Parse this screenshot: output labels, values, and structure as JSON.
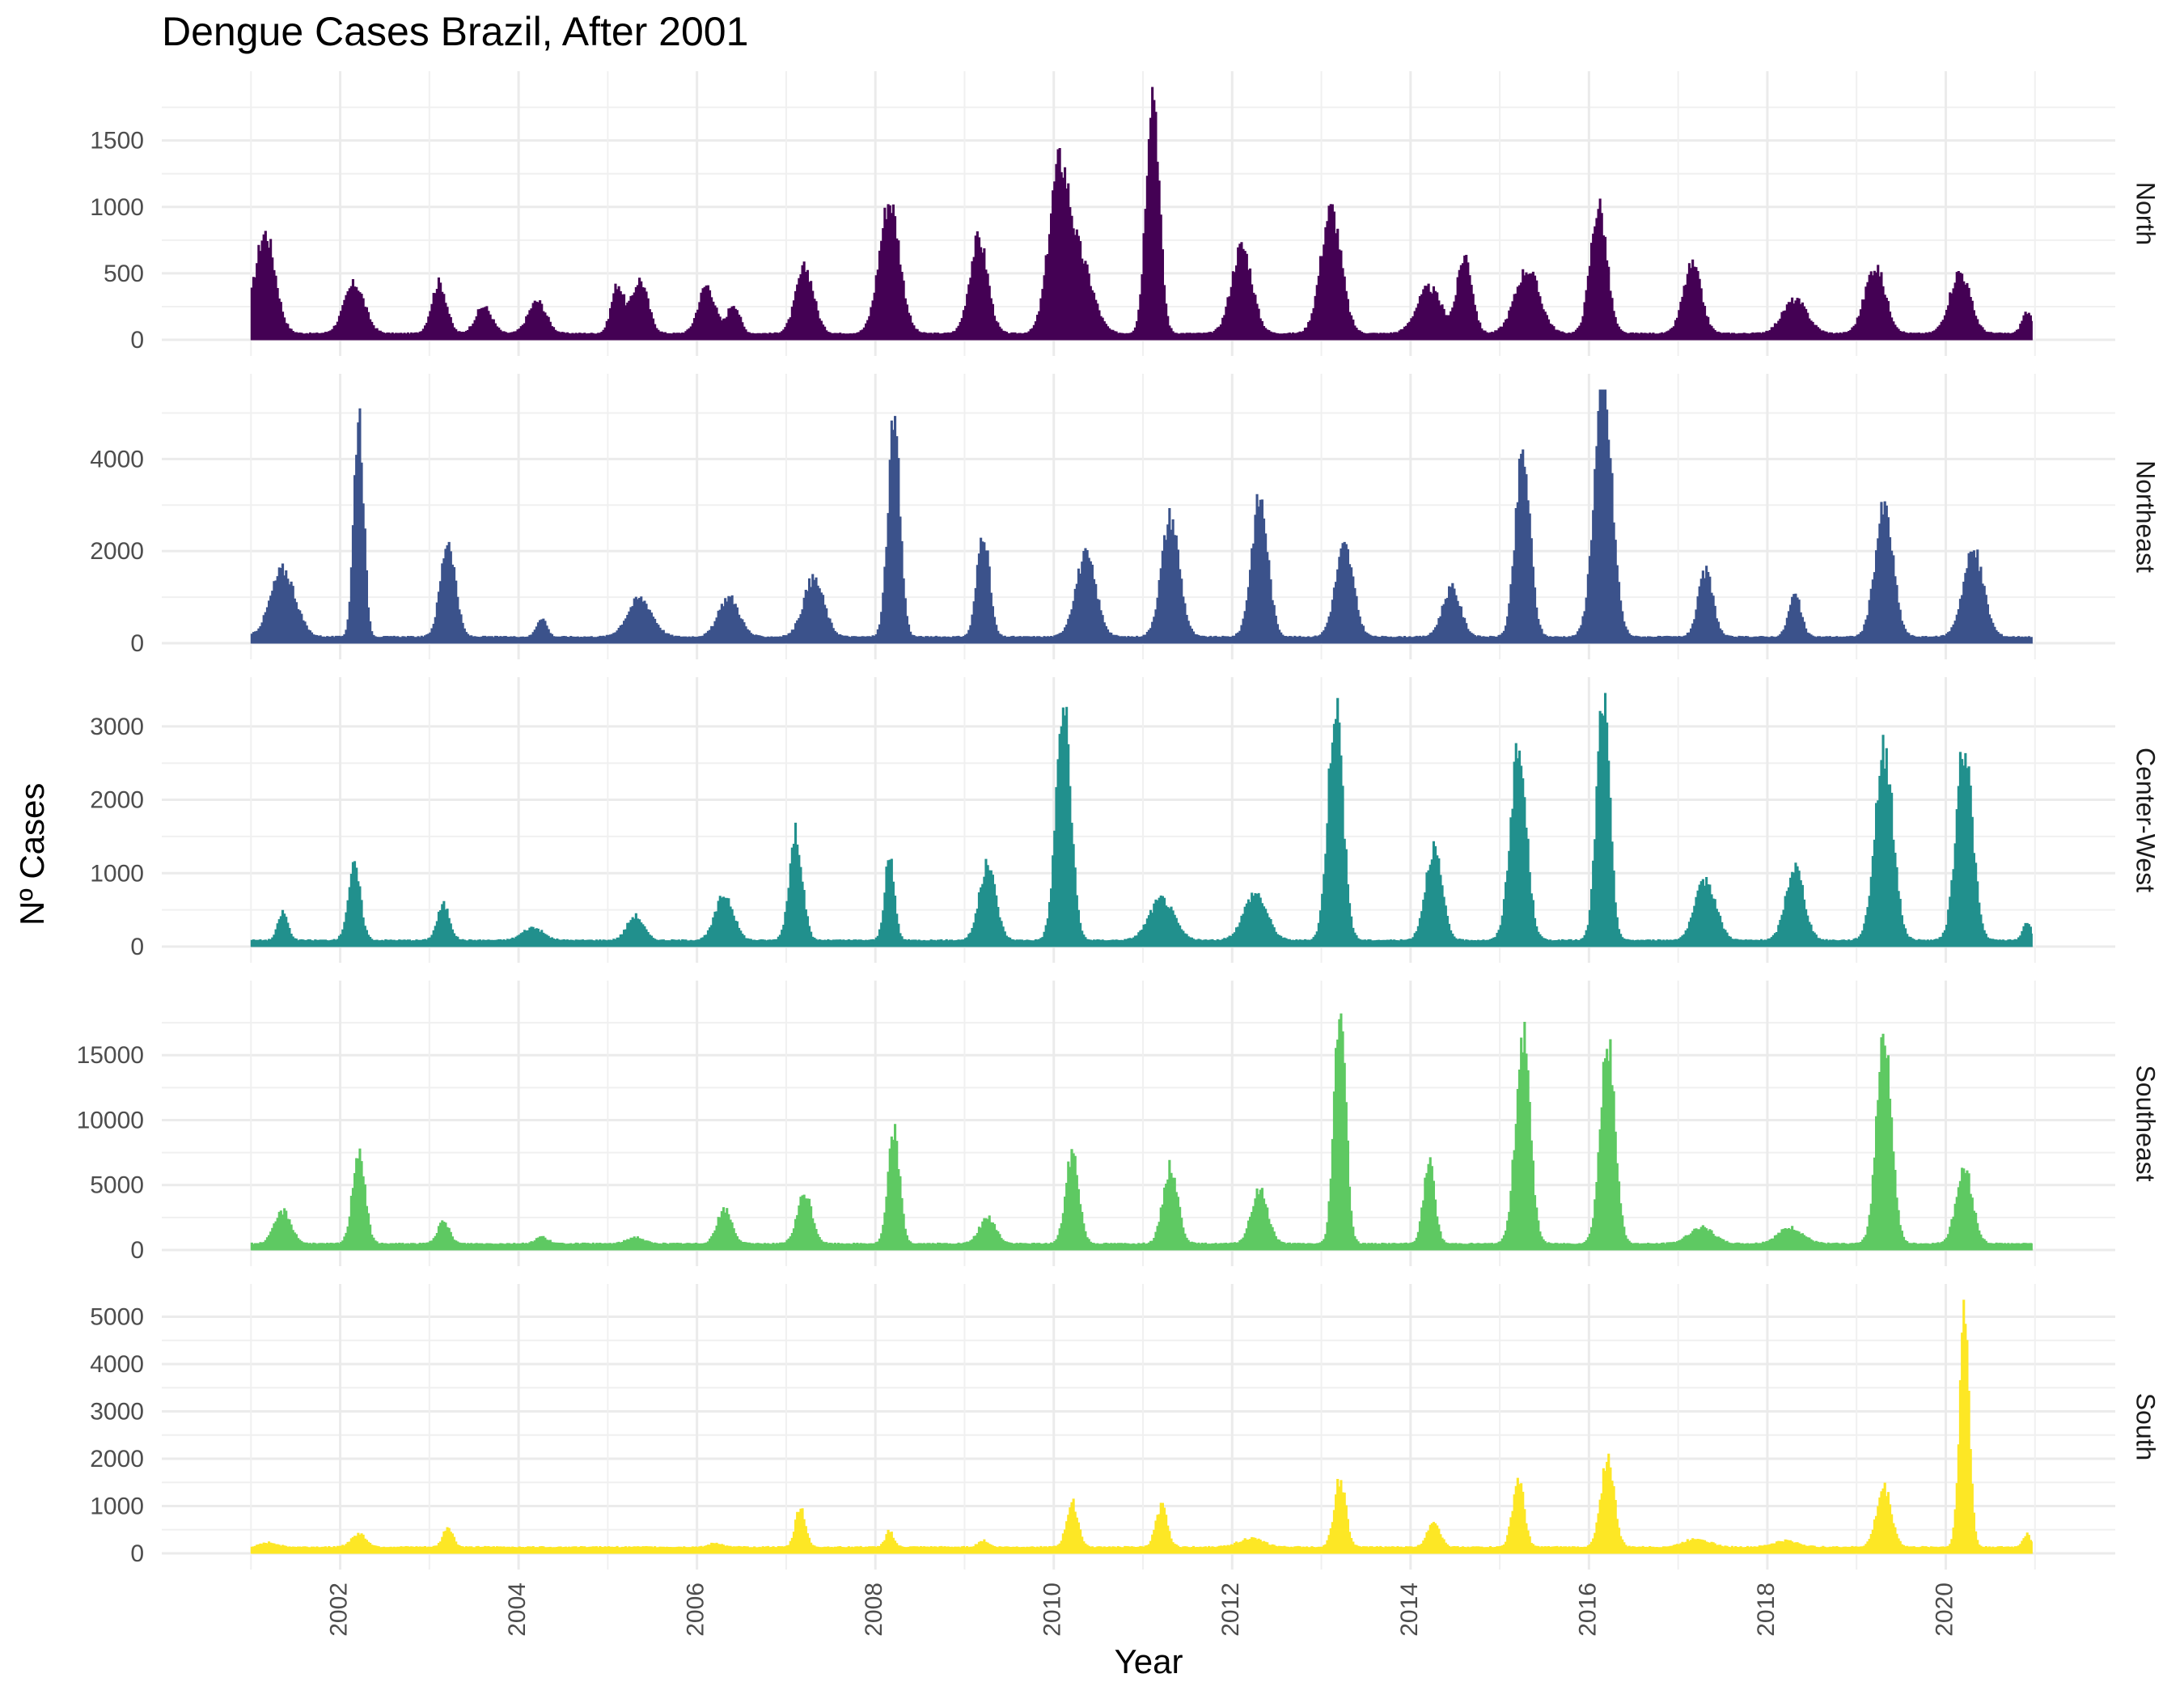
{
  "chart_data": {
    "type": "area",
    "title": "Dengue Cases Brazil, After 2001",
    "xlabel": "Year",
    "ylabel": "Nº Cases",
    "x_ticks": [
      2002,
      2004,
      2006,
      2008,
      2010,
      2012,
      2014,
      2016,
      2018,
      2020
    ],
    "x_range": [
      2000.0,
      2021.9
    ],
    "grid": true,
    "legend": "none",
    "panels": [
      {
        "name": "North",
        "color": "#440154",
        "ylim": [
          0,
          1900
        ],
        "y_ticks": [
          0,
          500,
          1000,
          1500
        ],
        "peaks": [
          {
            "x": 2001.15,
            "y": 750,
            "w": 0.25
          },
          {
            "x": 2002.15,
            "y": 370,
            "w": 0.25
          },
          {
            "x": 2003.1,
            "y": 380,
            "w": 0.18
          },
          {
            "x": 2003.6,
            "y": 200,
            "w": 0.2
          },
          {
            "x": 2004.2,
            "y": 240,
            "w": 0.22
          },
          {
            "x": 2005.1,
            "y": 360,
            "w": 0.15
          },
          {
            "x": 2005.35,
            "y": 400,
            "w": 0.2
          },
          {
            "x": 2006.1,
            "y": 360,
            "w": 0.2
          },
          {
            "x": 2006.4,
            "y": 220,
            "w": 0.15
          },
          {
            "x": 2007.2,
            "y": 490,
            "w": 0.22
          },
          {
            "x": 2008.15,
            "y": 990,
            "w": 0.25
          },
          {
            "x": 2009.15,
            "y": 710,
            "w": 0.22
          },
          {
            "x": 2010.05,
            "y": 1200,
            "w": 0.25
          },
          {
            "x": 2010.3,
            "y": 500,
            "w": 0.3
          },
          {
            "x": 2011.1,
            "y": 1880,
            "w": 0.16
          },
          {
            "x": 2012.1,
            "y": 650,
            "w": 0.25
          },
          {
            "x": 2013.1,
            "y": 930,
            "w": 0.25
          },
          {
            "x": 2014.2,
            "y": 340,
            "w": 0.3
          },
          {
            "x": 2014.6,
            "y": 580,
            "w": 0.18
          },
          {
            "x": 2015.3,
            "y": 480,
            "w": 0.3
          },
          {
            "x": 2016.1,
            "y": 960,
            "w": 0.2
          },
          {
            "x": 2017.15,
            "y": 510,
            "w": 0.22
          },
          {
            "x": 2018.3,
            "y": 250,
            "w": 0.3
          },
          {
            "x": 2019.2,
            "y": 500,
            "w": 0.25
          },
          {
            "x": 2020.15,
            "y": 460,
            "w": 0.25
          },
          {
            "x": 2020.9,
            "y": 160,
            "w": 0.12
          }
        ]
      },
      {
        "name": "Northeast",
        "color": "#3b528b",
        "ylim": [
          0,
          5500
        ],
        "y_ticks": [
          0,
          2000,
          4000
        ],
        "peaks": [
          {
            "x": 2001.35,
            "y": 1450,
            "w": 0.3
          },
          {
            "x": 2002.2,
            "y": 4900,
            "w": 0.12
          },
          {
            "x": 2003.2,
            "y": 2100,
            "w": 0.18
          },
          {
            "x": 2004.25,
            "y": 420,
            "w": 0.12
          },
          {
            "x": 2005.35,
            "y": 830,
            "w": 0.3
          },
          {
            "x": 2006.35,
            "y": 860,
            "w": 0.25
          },
          {
            "x": 2007.3,
            "y": 1250,
            "w": 0.25
          },
          {
            "x": 2008.2,
            "y": 4600,
            "w": 0.15
          },
          {
            "x": 2009.2,
            "y": 2300,
            "w": 0.15
          },
          {
            "x": 2010.35,
            "y": 1750,
            "w": 0.25
          },
          {
            "x": 2011.3,
            "y": 2600,
            "w": 0.22
          },
          {
            "x": 2012.3,
            "y": 3000,
            "w": 0.2
          },
          {
            "x": 2013.25,
            "y": 1950,
            "w": 0.22
          },
          {
            "x": 2014.45,
            "y": 1050,
            "w": 0.22
          },
          {
            "x": 2015.25,
            "y": 3950,
            "w": 0.18
          },
          {
            "x": 2016.15,
            "y": 5400,
            "w": 0.22
          },
          {
            "x": 2017.3,
            "y": 1400,
            "w": 0.18
          },
          {
            "x": 2018.3,
            "y": 900,
            "w": 0.15
          },
          {
            "x": 2019.3,
            "y": 2800,
            "w": 0.22
          },
          {
            "x": 2020.3,
            "y": 1850,
            "w": 0.25
          }
        ]
      },
      {
        "name": "Center-West",
        "color": "#21908d",
        "ylim": [
          0,
          3450
        ],
        "y_ticks": [
          0,
          1000,
          2000,
          3000
        ],
        "peaks": [
          {
            "x": 2001.35,
            "y": 380,
            "w": 0.12
          },
          {
            "x": 2002.15,
            "y": 1000,
            "w": 0.15
          },
          {
            "x": 2003.15,
            "y": 480,
            "w": 0.15
          },
          {
            "x": 2004.15,
            "y": 170,
            "w": 0.25
          },
          {
            "x": 2005.3,
            "y": 330,
            "w": 0.2
          },
          {
            "x": 2006.3,
            "y": 620,
            "w": 0.22
          },
          {
            "x": 2007.1,
            "y": 1450,
            "w": 0.16
          },
          {
            "x": 2008.15,
            "y": 1100,
            "w": 0.12
          },
          {
            "x": 2009.25,
            "y": 1020,
            "w": 0.2
          },
          {
            "x": 2010.1,
            "y": 3200,
            "w": 0.18
          },
          {
            "x": 2011.2,
            "y": 560,
            "w": 0.3
          },
          {
            "x": 2012.25,
            "y": 640,
            "w": 0.28
          },
          {
            "x": 2013.15,
            "y": 3250,
            "w": 0.18
          },
          {
            "x": 2014.25,
            "y": 1250,
            "w": 0.2
          },
          {
            "x": 2015.2,
            "y": 2550,
            "w": 0.2
          },
          {
            "x": 2016.15,
            "y": 3300,
            "w": 0.16
          },
          {
            "x": 2017.3,
            "y": 820,
            "w": 0.25
          },
          {
            "x": 2018.3,
            "y": 1000,
            "w": 0.22
          },
          {
            "x": 2019.3,
            "y": 2600,
            "w": 0.22
          },
          {
            "x": 2020.2,
            "y": 2650,
            "w": 0.2
          },
          {
            "x": 2020.9,
            "y": 250,
            "w": 0.1
          }
        ]
      },
      {
        "name": "Southeast",
        "color": "#5ec962",
        "ylim": [
          0,
          19500
        ],
        "y_ticks": [
          0,
          5000,
          10000,
          15000
        ],
        "peaks": [
          {
            "x": 2001.35,
            "y": 2500,
            "w": 0.2
          },
          {
            "x": 2002.2,
            "y": 7300,
            "w": 0.15
          },
          {
            "x": 2003.15,
            "y": 1600,
            "w": 0.15
          },
          {
            "x": 2004.25,
            "y": 520,
            "w": 0.15
          },
          {
            "x": 2005.3,
            "y": 500,
            "w": 0.2
          },
          {
            "x": 2006.3,
            "y": 2600,
            "w": 0.18
          },
          {
            "x": 2007.2,
            "y": 3800,
            "w": 0.18
          },
          {
            "x": 2008.2,
            "y": 8700,
            "w": 0.14
          },
          {
            "x": 2009.25,
            "y": 1950,
            "w": 0.2
          },
          {
            "x": 2010.2,
            "y": 7000,
            "w": 0.16
          },
          {
            "x": 2011.3,
            "y": 5900,
            "w": 0.18
          },
          {
            "x": 2012.3,
            "y": 4100,
            "w": 0.2
          },
          {
            "x": 2013.2,
            "y": 18800,
            "w": 0.14
          },
          {
            "x": 2014.2,
            "y": 6100,
            "w": 0.14
          },
          {
            "x": 2015.25,
            "y": 15900,
            "w": 0.18
          },
          {
            "x": 2016.2,
            "y": 15300,
            "w": 0.18
          },
          {
            "x": 2017.25,
            "y": 1250,
            "w": 0.3
          },
          {
            "x": 2018.25,
            "y": 1200,
            "w": 0.3
          },
          {
            "x": 2019.3,
            "y": 16700,
            "w": 0.18
          },
          {
            "x": 2020.2,
            "y": 5700,
            "w": 0.2
          }
        ]
      },
      {
        "name": "South",
        "color": "#fde725",
        "ylim": [
          0,
          5350
        ],
        "y_ticks": [
          0,
          1000,
          2000,
          3000,
          4000,
          5000
        ],
        "peaks": [
          {
            "x": 2001.2,
            "y": 90,
            "w": 0.2
          },
          {
            "x": 2002.2,
            "y": 280,
            "w": 0.18
          },
          {
            "x": 2003.2,
            "y": 420,
            "w": 0.12
          },
          {
            "x": 2006.2,
            "y": 80,
            "w": 0.15
          },
          {
            "x": 2007.15,
            "y": 850,
            "w": 0.12
          },
          {
            "x": 2008.15,
            "y": 330,
            "w": 0.1
          },
          {
            "x": 2009.2,
            "y": 140,
            "w": 0.12
          },
          {
            "x": 2010.2,
            "y": 930,
            "w": 0.14
          },
          {
            "x": 2011.2,
            "y": 850,
            "w": 0.14
          },
          {
            "x": 2012.2,
            "y": 180,
            "w": 0.3
          },
          {
            "x": 2013.2,
            "y": 1420,
            "w": 0.14
          },
          {
            "x": 2014.25,
            "y": 560,
            "w": 0.15
          },
          {
            "x": 2015.2,
            "y": 1420,
            "w": 0.14
          },
          {
            "x": 2016.2,
            "y": 1900,
            "w": 0.16
          },
          {
            "x": 2017.2,
            "y": 180,
            "w": 0.3
          },
          {
            "x": 2018.2,
            "y": 130,
            "w": 0.3
          },
          {
            "x": 2019.3,
            "y": 1250,
            "w": 0.18
          },
          {
            "x": 2020.2,
            "y": 4950,
            "w": 0.12
          },
          {
            "x": 2020.9,
            "y": 260,
            "w": 0.1
          }
        ]
      }
    ]
  }
}
